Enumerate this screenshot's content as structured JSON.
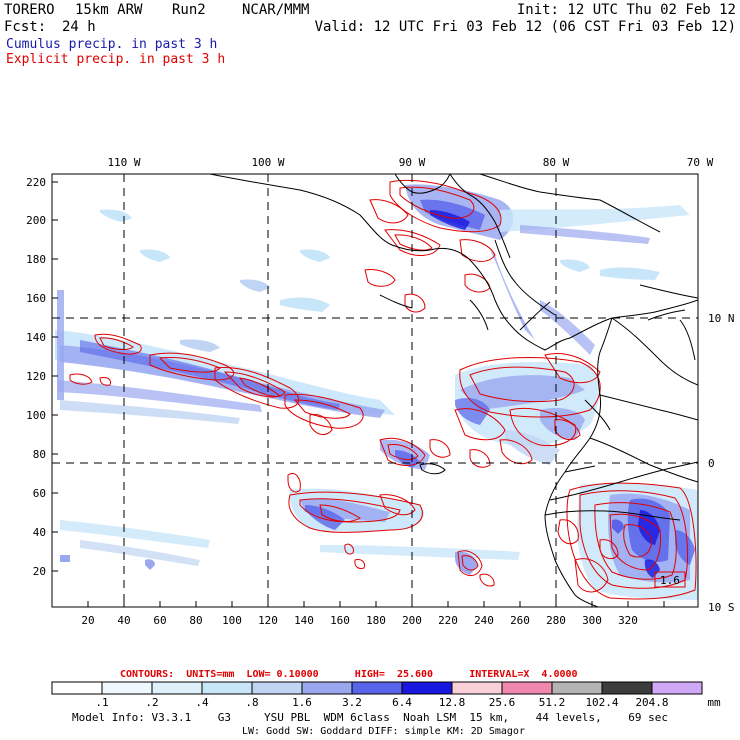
{
  "header": {
    "model": "TORERO",
    "resolution": "15km ARW",
    "run": "Run2",
    "org": "NCAR/MMM",
    "init": "Init: 12 UTC Thu 02 Feb 12",
    "fcst_label": "Fcst:",
    "fcst_value": "24 h",
    "valid": "Valid: 12 UTC Fri 03 Feb 12 (06 CST Fri 03 Feb 12)"
  },
  "legend": {
    "cumulus": "Cumulus precip. in past 3 h",
    "explicit": "Explicit precip. in past 3 h"
  },
  "colors": {
    "cumulus_text": "#1a1aa8",
    "explicit_text": "#e00000",
    "contour_line": "#e00000",
    "map_line": "#000000"
  },
  "map": {
    "lon_labels": [
      "110 W",
      "100 W",
      "90 W",
      "80 W",
      "70 W"
    ],
    "lat_labels": [
      "10 N",
      "0",
      "10 S"
    ],
    "x_ticks": [
      "20",
      "40",
      "60",
      "80",
      "100",
      "120",
      "140",
      "160",
      "180",
      "200",
      "220",
      "240",
      "260",
      "280",
      "300",
      "320"
    ],
    "y_ticks": [
      "220",
      "200",
      "180",
      "160",
      "140",
      "120",
      "100",
      "80",
      "60",
      "40",
      "20"
    ],
    "box_value": "1.6"
  },
  "contours": {
    "text": "CONTOURS:  UNITS=mm  LOW= 0.10000      HIGH=  25.600      INTERVAL=X  4.0000"
  },
  "colorbar": {
    "labels": [
      ".1",
      ".2",
      ".4",
      ".8",
      "1.6",
      "3.2",
      "6.4",
      "12.8",
      "25.6",
      "51.2",
      "102.4",
      "204.8"
    ],
    "unit": "mm",
    "colors": [
      "#ffffff",
      "#f0f8ff",
      "#e0f0fa",
      "#c8e6fa",
      "#c0d4f4",
      "#9aa8f0",
      "#5a64ea",
      "#1818e0",
      "#fad0d8",
      "#f088b0",
      "#b4b4b4",
      "#3c3c3c",
      "#d0a8f8"
    ]
  },
  "footer": {
    "line1": "Model Info: V3.3.1    G3     YSU PBL  WDM 6class  Noah LSM  15 km,    44 levels,    69 sec",
    "line2": "LW: Godd SW: Goddard DIFF: simple KM: 2D Smagor"
  }
}
